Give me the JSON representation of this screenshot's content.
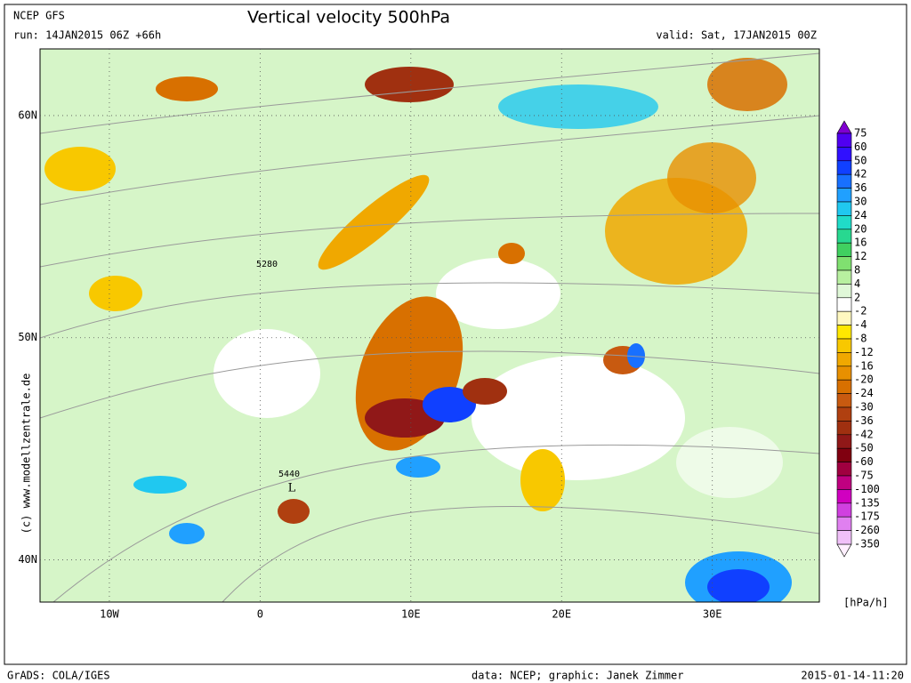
{
  "header": {
    "model": "NCEP GFS",
    "title": "Vertical velocity 500hPa",
    "run": "run: 14JAN2015 06Z +66h",
    "valid": "valid: Sat, 17JAN2015 00Z"
  },
  "map": {
    "xlim": [
      -14.6,
      37.1
    ],
    "ylim": [
      38.1,
      63
    ],
    "xticks": [
      {
        "value": -10,
        "label": "10W"
      },
      0,
      {
        "value": 10,
        "label": "10E"
      },
      {
        "value": 20,
        "label": "20E"
      },
      {
        "value": 30,
        "label": "30E"
      }
    ],
    "yticks": [
      {
        "value": 60,
        "label": "60N"
      },
      {
        "value": 50,
        "label": "50N"
      },
      {
        "value": 40,
        "label": "40N"
      }
    ],
    "contour_labels": [
      5280,
      5440
    ],
    "low_label": "L"
  },
  "colorbar": {
    "levels": [
      75,
      60,
      50,
      42,
      36,
      30,
      24,
      20,
      16,
      12,
      8,
      4,
      2,
      -2,
      -4,
      -8,
      -12,
      -16,
      -20,
      -24,
      -30,
      -36,
      -42,
      -50,
      -60,
      -75,
      -100,
      -135,
      -175,
      -260,
      -350
    ],
    "colors": [
      "#5000f0",
      "#3010ff",
      "#1040ff",
      "#1870ff",
      "#20a0ff",
      "#20c8f0",
      "#20dcc8",
      "#28d890",
      "#40d060",
      "#80e070",
      "#b8f0a0",
      "#e0f8d8",
      "#ffffff",
      "#fff8c0",
      "#ffe800",
      "#f8c800",
      "#f0a800",
      "#e89000",
      "#d87000",
      "#c85a10",
      "#b04010",
      "#a03010",
      "#901818",
      "#800010",
      "#a00040",
      "#c00080",
      "#d000c0",
      "#d040e0",
      "#e080f0",
      "#f0c0f8"
    ],
    "over_color": "#8000d0",
    "under_color": "#fff0ff",
    "unit": "[hPa/h]"
  },
  "footer": {
    "copyright": "(c) www.modellzentrale.de",
    "software": "GrADS: COLA/IGES",
    "credit": "data: NCEP; graphic: Janek Zimmer",
    "timestamp": "2015-01-14-11:20"
  }
}
